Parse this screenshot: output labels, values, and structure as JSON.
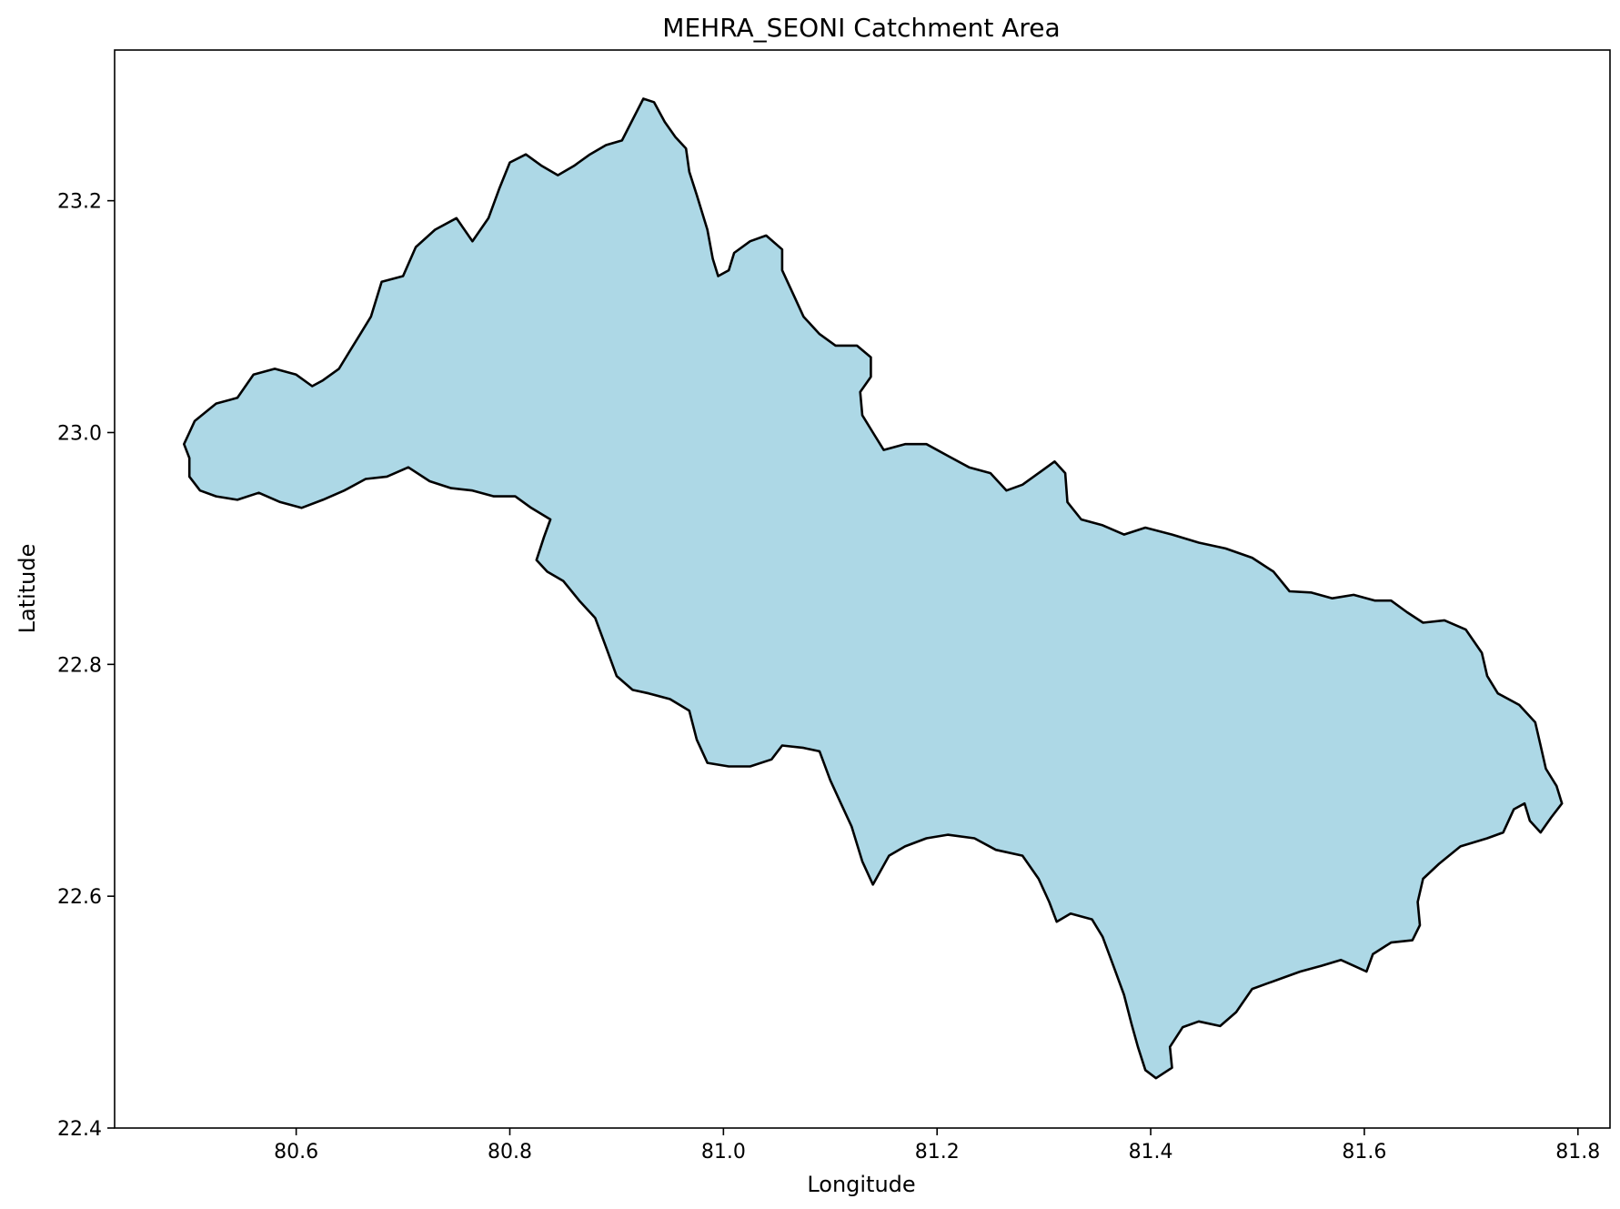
{
  "chart_data": {
    "type": "map",
    "title": "MEHRA_SEONI Catchment Area",
    "xlabel": "Longitude",
    "ylabel": "Latitude",
    "xlim": [
      80.43,
      81.83
    ],
    "ylim": [
      22.4,
      23.33
    ],
    "xticks": [
      80.6,
      80.8,
      81.0,
      81.2,
      81.4,
      81.6,
      81.8
    ],
    "xtick_labels": [
      "80.6",
      "80.8",
      "81.0",
      "81.2",
      "81.4",
      "81.6",
      "81.8"
    ],
    "yticks": [
      22.4,
      22.6,
      22.8,
      23.0,
      23.2
    ],
    "ytick_labels": [
      "22.4",
      "22.6",
      "22.8",
      "23.0",
      "23.2"
    ],
    "grid": false,
    "fill_color": "#add8e6",
    "edge_color": "#000000",
    "boundary": [
      [
        80.505,
        23.01
      ],
      [
        80.525,
        23.025
      ],
      [
        80.545,
        23.03
      ],
      [
        80.56,
        23.05
      ],
      [
        80.58,
        23.055
      ],
      [
        80.6,
        23.05
      ],
      [
        80.615,
        23.04
      ],
      [
        80.625,
        23.045
      ],
      [
        80.64,
        23.055
      ],
      [
        80.65,
        23.07
      ],
      [
        80.66,
        23.085
      ],
      [
        80.67,
        23.1
      ],
      [
        80.68,
        23.13
      ],
      [
        80.7,
        23.135
      ],
      [
        80.712,
        23.16
      ],
      [
        80.73,
        23.175
      ],
      [
        80.75,
        23.185
      ],
      [
        80.765,
        23.165
      ],
      [
        80.78,
        23.185
      ],
      [
        80.79,
        23.21
      ],
      [
        80.8,
        23.233
      ],
      [
        80.815,
        23.24
      ],
      [
        80.83,
        23.23
      ],
      [
        80.845,
        23.222
      ],
      [
        80.86,
        23.23
      ],
      [
        80.875,
        23.24
      ],
      [
        80.89,
        23.248
      ],
      [
        80.905,
        23.252
      ],
      [
        80.915,
        23.27
      ],
      [
        80.925,
        23.288
      ],
      [
        80.935,
        23.285
      ],
      [
        80.945,
        23.268
      ],
      [
        80.955,
        23.255
      ],
      [
        80.965,
        23.245
      ],
      [
        80.968,
        23.225
      ],
      [
        80.975,
        23.205
      ],
      [
        80.985,
        23.175
      ],
      [
        80.99,
        23.15
      ],
      [
        80.995,
        23.135
      ],
      [
        81.005,
        23.14
      ],
      [
        81.01,
        23.155
      ],
      [
        81.025,
        23.165
      ],
      [
        81.04,
        23.17
      ],
      [
        81.055,
        23.158
      ],
      [
        81.055,
        23.14
      ],
      [
        81.065,
        23.12
      ],
      [
        81.075,
        23.1
      ],
      [
        81.09,
        23.085
      ],
      [
        81.105,
        23.075
      ],
      [
        81.125,
        23.075
      ],
      [
        81.138,
        23.065
      ],
      [
        81.138,
        23.048
      ],
      [
        81.128,
        23.035
      ],
      [
        81.13,
        23.015
      ],
      [
        81.14,
        23.0
      ],
      [
        81.15,
        22.985
      ],
      [
        81.17,
        22.99
      ],
      [
        81.19,
        22.99
      ],
      [
        81.21,
        22.98
      ],
      [
        81.23,
        22.97
      ],
      [
        81.25,
        22.965
      ],
      [
        81.265,
        22.95
      ],
      [
        81.28,
        22.955
      ],
      [
        81.295,
        22.965
      ],
      [
        81.31,
        22.975
      ],
      [
        81.32,
        22.965
      ],
      [
        81.322,
        22.94
      ],
      [
        81.335,
        22.925
      ],
      [
        81.355,
        22.92
      ],
      [
        81.375,
        22.912
      ],
      [
        81.395,
        22.918
      ],
      [
        81.42,
        22.912
      ],
      [
        81.445,
        22.905
      ],
      [
        81.47,
        22.9
      ],
      [
        81.495,
        22.892
      ],
      [
        81.515,
        22.88
      ],
      [
        81.53,
        22.863
      ],
      [
        81.55,
        22.862
      ],
      [
        81.57,
        22.857
      ],
      [
        81.59,
        22.86
      ],
      [
        81.61,
        22.855
      ],
      [
        81.625,
        22.855
      ],
      [
        81.64,
        22.845
      ],
      [
        81.655,
        22.836
      ],
      [
        81.675,
        22.838
      ],
      [
        81.695,
        22.83
      ],
      [
        81.71,
        22.81
      ],
      [
        81.715,
        22.79
      ],
      [
        81.725,
        22.775
      ],
      [
        81.745,
        22.765
      ],
      [
        81.76,
        22.75
      ],
      [
        81.765,
        22.73
      ],
      [
        81.77,
        22.71
      ],
      [
        81.78,
        22.695
      ],
      [
        81.785,
        22.68
      ],
      [
        81.775,
        22.668
      ],
      [
        81.765,
        22.655
      ],
      [
        81.755,
        22.665
      ],
      [
        81.75,
        22.68
      ],
      [
        81.74,
        22.675
      ],
      [
        81.73,
        22.655
      ],
      [
        81.715,
        22.65
      ],
      [
        81.69,
        22.643
      ],
      [
        81.67,
        22.628
      ],
      [
        81.655,
        22.615
      ],
      [
        81.65,
        22.595
      ],
      [
        81.652,
        22.575
      ],
      [
        81.645,
        22.562
      ],
      [
        81.625,
        22.56
      ],
      [
        81.608,
        22.55
      ],
      [
        81.602,
        22.535
      ],
      [
        81.59,
        22.54
      ],
      [
        81.578,
        22.545
      ],
      [
        81.56,
        22.54
      ],
      [
        81.54,
        22.535
      ],
      [
        81.525,
        22.53
      ],
      [
        81.51,
        22.525
      ],
      [
        81.495,
        22.52
      ],
      [
        81.48,
        22.5
      ],
      [
        81.465,
        22.488
      ],
      [
        81.445,
        22.492
      ],
      [
        81.43,
        22.487
      ],
      [
        81.418,
        22.47
      ],
      [
        81.42,
        22.452
      ],
      [
        81.405,
        22.443
      ],
      [
        81.395,
        22.45
      ],
      [
        81.388,
        22.47
      ],
      [
        81.382,
        22.49
      ],
      [
        81.375,
        22.515
      ],
      [
        81.365,
        22.54
      ],
      [
        81.355,
        22.565
      ],
      [
        81.345,
        22.58
      ],
      [
        81.325,
        22.585
      ],
      [
        81.312,
        22.578
      ],
      [
        81.305,
        22.595
      ],
      [
        81.295,
        22.615
      ],
      [
        81.28,
        22.635
      ],
      [
        81.255,
        22.64
      ],
      [
        81.235,
        22.65
      ],
      [
        81.21,
        22.653
      ],
      [
        81.19,
        22.65
      ],
      [
        81.17,
        22.643
      ],
      [
        81.155,
        22.635
      ],
      [
        81.14,
        22.61
      ],
      [
        81.13,
        22.63
      ],
      [
        81.12,
        22.66
      ],
      [
        81.11,
        22.68
      ],
      [
        81.1,
        22.7
      ],
      [
        81.09,
        22.725
      ],
      [
        81.075,
        22.728
      ],
      [
        81.055,
        22.73
      ],
      [
        81.045,
        22.718
      ],
      [
        81.025,
        22.712
      ],
      [
        81.005,
        22.712
      ],
      [
        80.985,
        22.715
      ],
      [
        80.975,
        22.735
      ],
      [
        80.968,
        22.76
      ],
      [
        80.95,
        22.77
      ],
      [
        80.93,
        22.775
      ],
      [
        80.915,
        22.778
      ],
      [
        80.9,
        22.79
      ],
      [
        80.89,
        22.815
      ],
      [
        80.88,
        22.84
      ],
      [
        80.865,
        22.855
      ],
      [
        80.85,
        22.872
      ],
      [
        80.835,
        22.88
      ],
      [
        80.825,
        22.89
      ],
      [
        80.832,
        22.91
      ],
      [
        80.838,
        22.925
      ],
      [
        80.82,
        22.935
      ],
      [
        80.805,
        22.945
      ],
      [
        80.785,
        22.945
      ],
      [
        80.765,
        22.95
      ],
      [
        80.745,
        22.952
      ],
      [
        80.725,
        22.958
      ],
      [
        80.705,
        22.97
      ],
      [
        80.685,
        22.962
      ],
      [
        80.665,
        22.96
      ],
      [
        80.645,
        22.95
      ],
      [
        80.625,
        22.942
      ],
      [
        80.605,
        22.935
      ],
      [
        80.585,
        22.94
      ],
      [
        80.565,
        22.948
      ],
      [
        80.545,
        22.942
      ],
      [
        80.525,
        22.945
      ],
      [
        80.51,
        22.95
      ],
      [
        80.5,
        22.962
      ],
      [
        80.5,
        22.978
      ],
      [
        80.495,
        22.99
      ],
      [
        80.5,
        23.0
      ],
      [
        80.505,
        23.01
      ]
    ]
  }
}
